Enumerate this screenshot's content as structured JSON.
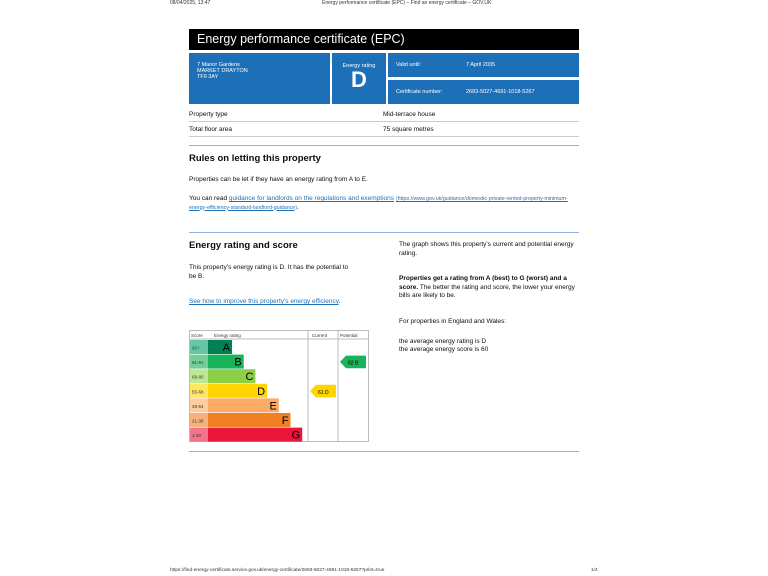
{
  "print_header": {
    "datetime": "08/04/2025, 13:47",
    "page_title": "Energy performance certificate (EPC) – Find an energy certificate – GOV.UK"
  },
  "title": "Energy performance certificate (EPC)",
  "address": {
    "line1": "7 Manor Gardens",
    "line2": "MARKET DRAYTON",
    "line3": "TF9 3AY"
  },
  "energy_rating": {
    "label": "Energy rating",
    "value": "D"
  },
  "valid_until": {
    "label": "Valid until:",
    "value": "7 April 2035"
  },
  "certificate_number": {
    "label": "Certificate number:",
    "value": "2683-5027-4691-1018-5267"
  },
  "property": [
    {
      "label": "Property type",
      "value": "Mid-terrace house"
    },
    {
      "label": "Total floor area",
      "value": "75 square metres"
    }
  ],
  "rules": {
    "heading": "Rules on letting this property",
    "p1": "Properties can be let if they have an energy rating from A to E.",
    "p2_prefix": "You can read ",
    "p2_link": "guidance for landlords on the regulations and exemptions",
    "p2_url": "(https://www.gov.uk/guidance/domestic-private-rented-property-minimum-energy-efficiency-standard-landlord-guidance)",
    "p2_suffix": "."
  },
  "score": {
    "heading": "Energy rating and score",
    "p1": "This property's energy rating is D. It has the potential to be B.",
    "link": "See how to improve this property's energy efficiency",
    "link_suffix": ".",
    "r1": "The graph shows this property's current and potential energy rating.",
    "r2_bold": "Properties get a rating from A (best) to G (worst) and a score.",
    "r2_rest": " The better the rating and score, the lower your energy bills are likely to be.",
    "r3": "For properties in England and Wales:",
    "r4": "the average energy rating is D",
    "r5": "the average energy score is 60"
  },
  "chart_data": {
    "type": "table",
    "headers": {
      "score": "Score",
      "rating": "Energy rating",
      "current": "Current",
      "potential": "Potential"
    },
    "bands": [
      {
        "letter": "A",
        "range": "92+",
        "color": "#008054",
        "score_bg": "#64c7a3"
      },
      {
        "letter": "B",
        "range": "81-91",
        "color": "#19b459",
        "score_bg": "#73cf97"
      },
      {
        "letter": "C",
        "range": "69-80",
        "color": "#8dce46",
        "score_bg": "#bde795"
      },
      {
        "letter": "D",
        "range": "55-68",
        "color": "#ffd500",
        "score_bg": "#ffe766"
      },
      {
        "letter": "E",
        "range": "39-54",
        "color": "#fcaa65",
        "score_bg": "#fdcc9f"
      },
      {
        "letter": "F",
        "range": "21-38",
        "color": "#ef8023",
        "score_bg": "#f5b37b"
      },
      {
        "letter": "G",
        "range": "1-20",
        "color": "#e9153b",
        "score_bg": "#f2738a"
      }
    ],
    "current": {
      "score": 61,
      "letter": "D",
      "label": "61 D"
    },
    "potential": {
      "score": 82,
      "letter": "B",
      "label": "82 B"
    }
  },
  "footer": {
    "url": "https://find-energy-certificate.service.gov.uk/energy-certificate/2683-5027-4691-1018-5267?print=true",
    "page": "1/4"
  }
}
